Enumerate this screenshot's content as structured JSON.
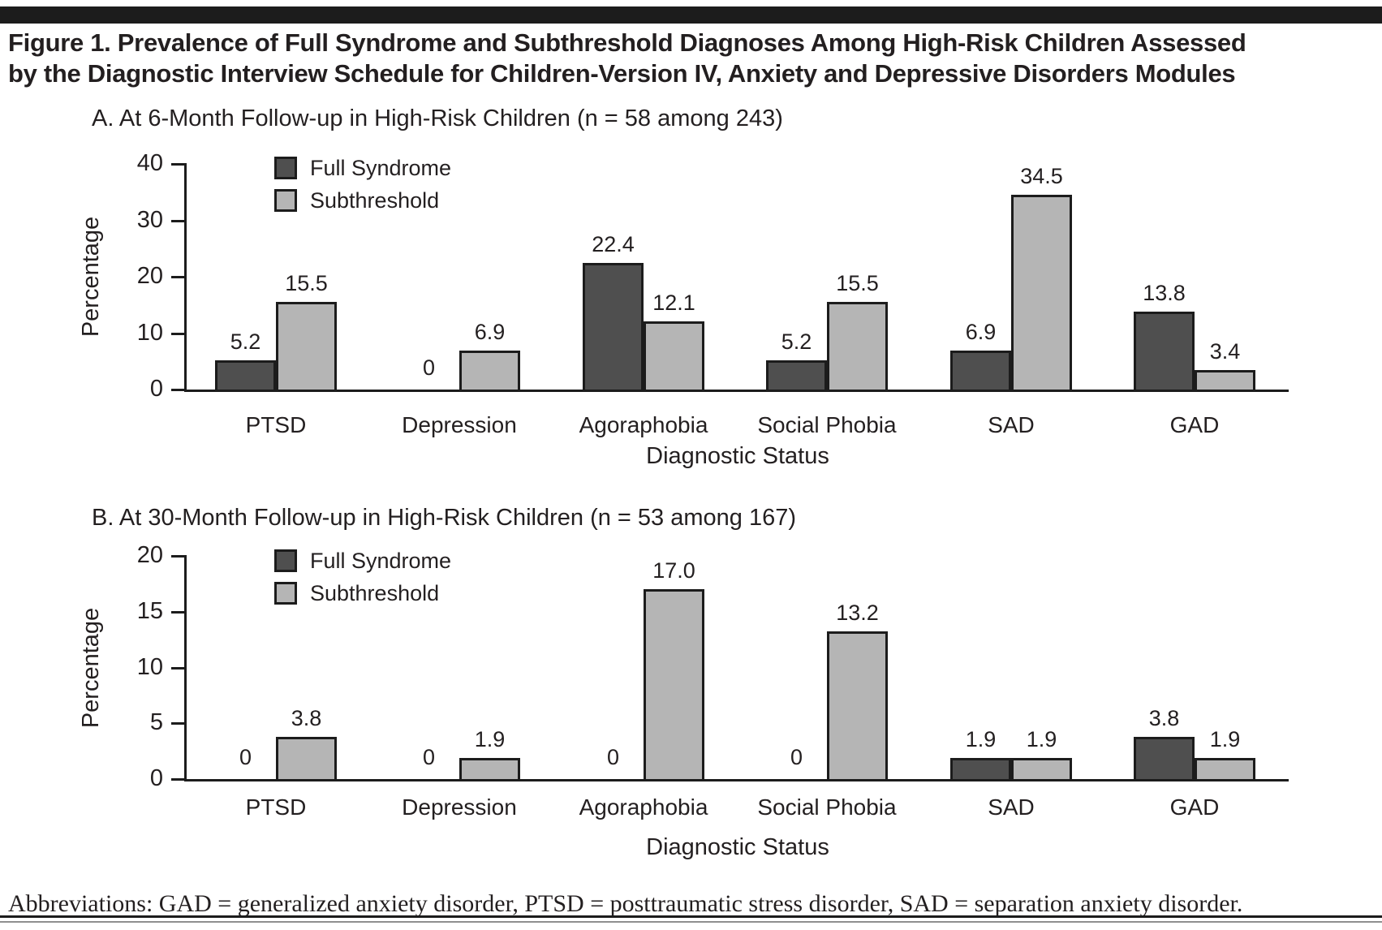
{
  "page": {
    "title_line1": "Figure 1. Prevalence of Full Syndrome and Subthreshold Diagnoses Among High-Risk Children Assessed",
    "title_line2": "by the Diagnostic Interview Schedule for Children-Version IV, Anxiety and Depressive Disorders Modules",
    "abbreviations": "Abbreviations: GAD = generalized anxiety disorder, PTSD = posttraumatic stress disorder, SAD = separation anxiety disorder."
  },
  "colors": {
    "full_syndrome": "#4f4f4f",
    "subthreshold": "#b5b5b5",
    "bar_border": "#1c1c1c",
    "text": "#231f20",
    "rule_dark": "#1c1c1c",
    "rule_light": "#8f8f8f"
  },
  "chart_data": [
    {
      "id": "panel_a",
      "type": "bar",
      "title": "A. At 6-Month Follow-up in High-Risk Children (n = 58 among 243)",
      "xlabel": "Diagnostic Status",
      "ylabel": "Percentage",
      "ylim": [
        0,
        40
      ],
      "yticks": [
        0,
        10,
        20,
        30,
        40
      ],
      "grid": false,
      "legend_position": "top-left-inside",
      "legend": [
        "Full Syndrome",
        "Subthreshold"
      ],
      "categories": [
        "PTSD",
        "Depression",
        "Agoraphobia",
        "Social Phobia",
        "SAD",
        "GAD"
      ],
      "series": [
        {
          "name": "Full Syndrome",
          "values": [
            5.2,
            0,
            22.4,
            5.2,
            6.9,
            13.8
          ],
          "labels": [
            "5.2",
            "0",
            "22.4",
            "5.2",
            "6.9",
            "13.8"
          ]
        },
        {
          "name": "Subthreshold",
          "values": [
            15.5,
            6.9,
            12.1,
            15.5,
            34.5,
            3.4
          ],
          "labels": [
            "15.5",
            "6.9",
            "12.1",
            "15.5",
            "34.5",
            "3.4"
          ]
        }
      ]
    },
    {
      "id": "panel_b",
      "type": "bar",
      "title": "B. At 30-Month Follow-up in High-Risk Children (n = 53 among 167)",
      "xlabel": "Diagnostic Status",
      "ylabel": "Percentage",
      "ylim": [
        0,
        20
      ],
      "yticks": [
        0,
        5,
        10,
        15,
        20
      ],
      "grid": false,
      "legend_position": "top-left-inside",
      "legend": [
        "Full Syndrome",
        "Subthreshold"
      ],
      "categories": [
        "PTSD",
        "Depression",
        "Agoraphobia",
        "Social Phobia",
        "SAD",
        "GAD"
      ],
      "series": [
        {
          "name": "Full Syndrome",
          "values": [
            0,
            0,
            0,
            0,
            1.9,
            3.8
          ],
          "labels": [
            "0",
            "0",
            "0",
            "0",
            "1.9",
            "3.8"
          ]
        },
        {
          "name": "Subthreshold",
          "values": [
            3.8,
            1.9,
            17.0,
            13.2,
            1.9,
            1.9
          ],
          "labels": [
            "3.8",
            "1.9",
            "17.0",
            "13.2",
            "1.9",
            "1.9"
          ]
        }
      ]
    }
  ]
}
